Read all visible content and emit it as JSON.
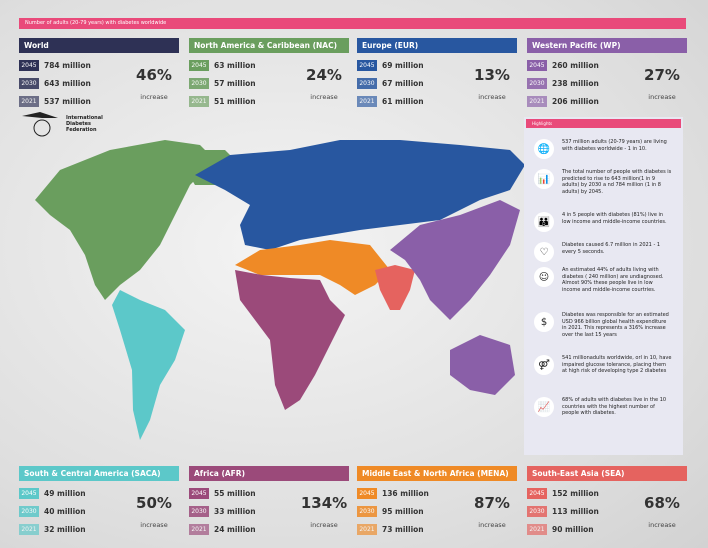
{
  "title": "Number of adults (20-79 years) with diabetes worldwide",
  "increase_label": "increase",
  "colors": {
    "title": "#e94a7a",
    "World": "#2e3155",
    "NAC": "#6a9e5e",
    "EUR": "#2857a0",
    "WP": "#8a5fa8",
    "SACA": "#5cc8c9",
    "AFR": "#9b4a7a",
    "MENA": "#ef8a26",
    "SEA": "#e5635f"
  },
  "regions": [
    {
      "name": "World",
      "rows": [
        {
          "year": "2045",
          "value": "784 million"
        },
        {
          "year": "2030",
          "value": "643 million"
        },
        {
          "year": "2021",
          "value": "537 million"
        }
      ],
      "increase": "46%"
    },
    {
      "name": "North America & Caribbean (NAC)",
      "rows": [
        {
          "year": "2045",
          "value": "63 million"
        },
        {
          "year": "2030",
          "value": "57 million"
        },
        {
          "year": "2021",
          "value": "51 million"
        }
      ],
      "increase": "24%"
    },
    {
      "name": "Europe (EUR)",
      "rows": [
        {
          "year": "2045",
          "value": "69 million"
        },
        {
          "year": "2030",
          "value": "67 million"
        },
        {
          "year": "2021",
          "value": "61 million"
        }
      ],
      "increase": "13%"
    },
    {
      "name": "Western Pacific (WP)",
      "rows": [
        {
          "year": "2045",
          "value": "260 million"
        },
        {
          "year": "2030",
          "value": "238 million"
        },
        {
          "year": "2021",
          "value": "206 million"
        }
      ],
      "increase": "27%"
    },
    {
      "name": "South & Central America (SACA)",
      "rows": [
        {
          "year": "2045",
          "value": "49 million"
        },
        {
          "year": "2030",
          "value": "40 million"
        },
        {
          "year": "2021",
          "value": "32 million"
        }
      ],
      "increase": "50%"
    },
    {
      "name": "Africa (AFR)",
      "rows": [
        {
          "year": "2045",
          "value": "55 million"
        },
        {
          "year": "2030",
          "value": "33 million"
        },
        {
          "year": "2021",
          "value": "24 million"
        }
      ],
      "increase": "134%"
    },
    {
      "name": "Middle East & North Africa (MENA)",
      "rows": [
        {
          "year": "2045",
          "value": "136 million"
        },
        {
          "year": "2030",
          "value": "95 million"
        },
        {
          "year": "2021",
          "value": "73 million"
        }
      ],
      "increase": "87%"
    },
    {
      "name": "South-East Asia (SEA)",
      "rows": [
        {
          "year": "2045",
          "value": "152 million"
        },
        {
          "year": "2030",
          "value": "113 million"
        },
        {
          "year": "2021",
          "value": "90 million"
        }
      ],
      "increase": "68%"
    }
  ],
  "logo": "International Diabetes Federation",
  "highlights": {
    "title": "Highlights",
    "items": [
      {
        "icon": "globe-icon",
        "text": "537 million adults (20-79 years) are living with diabetes worldwide - 1 in 10."
      },
      {
        "icon": "chart-icon",
        "text": "The total number of people with diabetes is predicted to rise to 643 million(1 in 9 adults) by 2030 a nd 784 million (1 in 8 adults) by 2045."
      },
      {
        "icon": "people-icon",
        "text": "4 in 5 people with diabetes (81%) live in low income and middle-income countries."
      },
      {
        "icon": "heart-icon",
        "text": "Diabetes caused 6.7 million in 2021 - 1 every 5 seconds."
      },
      {
        "icon": "person-hand-icon",
        "text": "An estimated 44% of adults living with diabetes ( 240 million) are undiagnosed. Almost 90% these people live in low income and middle-income courtries."
      },
      {
        "icon": "coins-icon",
        "text": "Diabetes was responsible for an estimated USD 966 billion global health expenditure in 2021. This represents a 316% increase over the last 15 years"
      },
      {
        "icon": "couple-icon",
        "text": "541 millionadults worldwide, orl in 10, have impaired glucose tolerance, placing them at high risk of developing type 2 diabetes"
      },
      {
        "icon": "trend-icon",
        "text": "68% of adults with diabetes live in the 10 countries with the highest number of people with diabetes."
      }
    ]
  }
}
